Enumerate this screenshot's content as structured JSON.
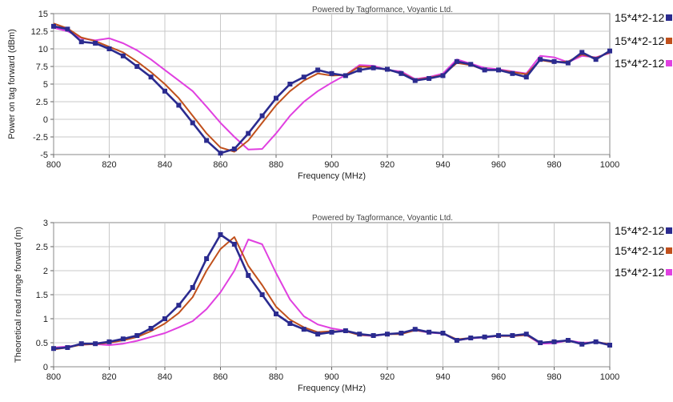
{
  "chart_data": [
    {
      "type": "line",
      "credit": "Powered by Tagformance, Voyantic Ltd.",
      "xlabel": "Frequency (MHz)",
      "ylabel": "Power on tag forward (dBm)",
      "xlim": [
        800,
        1000
      ],
      "ylim": [
        -5,
        15
      ],
      "x_ticks": [
        "800",
        "820",
        "840",
        "860",
        "880",
        "900",
        "920",
        "940",
        "960",
        "980",
        "1000"
      ],
      "y_ticks": [
        "-5",
        "-2.5",
        "0",
        "2.5",
        "5",
        "7.5",
        "10",
        "12.5",
        "15"
      ],
      "grid": true,
      "legend_position": "right",
      "legend": [
        "15*4*2-12",
        "15*4*2-12",
        "15*4*2-12"
      ],
      "series": [
        {
          "name": "15*4*2-12",
          "color": "#2b2b8f",
          "markers": true,
          "points": [
            [
              800,
              13.2
            ],
            [
              805,
              12.8
            ],
            [
              810,
              11.0
            ],
            [
              815,
              10.8
            ],
            [
              820,
              10.0
            ],
            [
              825,
              9.0
            ],
            [
              830,
              7.5
            ],
            [
              835,
              6.0
            ],
            [
              840,
              4.0
            ],
            [
              845,
              2.0
            ],
            [
              850,
              -0.5
            ],
            [
              855,
              -3.0
            ],
            [
              860,
              -4.8
            ],
            [
              865,
              -4.2
            ],
            [
              870,
              -2.0
            ],
            [
              875,
              0.5
            ],
            [
              880,
              3.0
            ],
            [
              885,
              5.0
            ],
            [
              890,
              6.0
            ],
            [
              895,
              7.0
            ],
            [
              900,
              6.5
            ],
            [
              905,
              6.2
            ],
            [
              910,
              7.0
            ],
            [
              915,
              7.3
            ],
            [
              920,
              7.1
            ],
            [
              925,
              6.5
            ],
            [
              930,
              5.5
            ],
            [
              935,
              5.8
            ],
            [
              940,
              6.2
            ],
            [
              945,
              8.2
            ],
            [
              950,
              7.8
            ],
            [
              955,
              7.0
            ],
            [
              960,
              7.0
            ],
            [
              965,
              6.5
            ],
            [
              970,
              6.0
            ],
            [
              975,
              8.5
            ],
            [
              980,
              8.2
            ],
            [
              985,
              8.0
            ],
            [
              990,
              9.5
            ],
            [
              995,
              8.5
            ],
            [
              1000,
              9.7
            ]
          ]
        },
        {
          "name": "15*4*2-12",
          "color": "#c0501c",
          "markers": false,
          "points": [
            [
              800,
              13.6
            ],
            [
              805,
              12.9
            ],
            [
              810,
              11.6
            ],
            [
              815,
              11.1
            ],
            [
              820,
              10.3
            ],
            [
              825,
              9.5
            ],
            [
              830,
              8.2
            ],
            [
              835,
              6.7
            ],
            [
              840,
              5.0
            ],
            [
              845,
              3.0
            ],
            [
              850,
              0.5
            ],
            [
              855,
              -2.0
            ],
            [
              860,
              -4.0
            ],
            [
              865,
              -4.6
            ],
            [
              870,
              -3.0
            ],
            [
              875,
              -0.5
            ],
            [
              880,
              2.0
            ],
            [
              885,
              4.0
            ],
            [
              890,
              5.5
            ],
            [
              895,
              6.5
            ],
            [
              900,
              6.2
            ],
            [
              905,
              6.3
            ],
            [
              910,
              7.5
            ],
            [
              915,
              7.4
            ],
            [
              920,
              7.0
            ],
            [
              925,
              6.6
            ],
            [
              930,
              5.6
            ],
            [
              935,
              5.9
            ],
            [
              940,
              6.3
            ],
            [
              945,
              8.0
            ],
            [
              950,
              7.7
            ],
            [
              955,
              7.0
            ],
            [
              960,
              7.0
            ],
            [
              965,
              6.7
            ],
            [
              970,
              6.4
            ],
            [
              975,
              8.4
            ],
            [
              980,
              8.1
            ],
            [
              985,
              8.2
            ],
            [
              990,
              9.2
            ],
            [
              995,
              8.7
            ],
            [
              1000,
              9.5
            ]
          ]
        },
        {
          "name": "15*4*2-12",
          "color": "#e040e0",
          "markers": false,
          "points": [
            [
              800,
              13.0
            ],
            [
              805,
              12.5
            ],
            [
              810,
              11.5
            ],
            [
              815,
              11.2
            ],
            [
              820,
              11.5
            ],
            [
              825,
              10.8
            ],
            [
              830,
              9.8
            ],
            [
              835,
              8.5
            ],
            [
              840,
              7.0
            ],
            [
              845,
              5.5
            ],
            [
              850,
              4.0
            ],
            [
              855,
              1.8
            ],
            [
              860,
              -0.5
            ],
            [
              865,
              -2.5
            ],
            [
              870,
              -4.3
            ],
            [
              875,
              -4.2
            ],
            [
              880,
              -2.0
            ],
            [
              885,
              0.5
            ],
            [
              890,
              2.5
            ],
            [
              895,
              4.0
            ],
            [
              900,
              5.2
            ],
            [
              905,
              6.3
            ],
            [
              910,
              7.7
            ],
            [
              915,
              7.6
            ],
            [
              920,
              7.0
            ],
            [
              925,
              6.8
            ],
            [
              930,
              5.7
            ],
            [
              935,
              6.0
            ],
            [
              940,
              6.5
            ],
            [
              945,
              8.5
            ],
            [
              950,
              7.9
            ],
            [
              955,
              7.3
            ],
            [
              960,
              7.1
            ],
            [
              965,
              6.8
            ],
            [
              970,
              6.5
            ],
            [
              975,
              9.0
            ],
            [
              980,
              8.8
            ],
            [
              985,
              8.1
            ],
            [
              990,
              9.0
            ],
            [
              995,
              8.8
            ],
            [
              1000,
              9.4
            ]
          ]
        }
      ]
    },
    {
      "type": "line",
      "credit": "Powered by Tagformance, Voyantic Ltd.",
      "xlabel": "Frequency (MHz)",
      "ylabel": "Theoretical read range forward (m)",
      "xlim": [
        800,
        1000
      ],
      "ylim": [
        0,
        3
      ],
      "x_ticks": [
        "800",
        "820",
        "840",
        "860",
        "880",
        "900",
        "920",
        "940",
        "960",
        "980",
        "1000"
      ],
      "y_ticks": [
        "0",
        "0.5",
        "1",
        "1.5",
        "2",
        "2.5",
        "3"
      ],
      "grid": true,
      "legend_position": "right",
      "legend": [
        "15*4*2-12",
        "15*4*2-12",
        "15*4*2-12"
      ],
      "series": [
        {
          "name": "15*4*2-12",
          "color": "#2b2b8f",
          "markers": true,
          "points": [
            [
              800,
              0.38
            ],
            [
              805,
              0.4
            ],
            [
              810,
              0.48
            ],
            [
              815,
              0.48
            ],
            [
              820,
              0.52
            ],
            [
              825,
              0.58
            ],
            [
              830,
              0.65
            ],
            [
              835,
              0.8
            ],
            [
              840,
              1.0
            ],
            [
              845,
              1.28
            ],
            [
              850,
              1.65
            ],
            [
              855,
              2.25
            ],
            [
              860,
              2.75
            ],
            [
              865,
              2.55
            ],
            [
              870,
              1.9
            ],
            [
              875,
              1.5
            ],
            [
              880,
              1.1
            ],
            [
              885,
              0.9
            ],
            [
              890,
              0.78
            ],
            [
              895,
              0.68
            ],
            [
              900,
              0.72
            ],
            [
              905,
              0.75
            ],
            [
              910,
              0.68
            ],
            [
              915,
              0.65
            ],
            [
              920,
              0.68
            ],
            [
              925,
              0.7
            ],
            [
              930,
              0.78
            ],
            [
              935,
              0.72
            ],
            [
              940,
              0.7
            ],
            [
              945,
              0.55
            ],
            [
              950,
              0.6
            ],
            [
              955,
              0.62
            ],
            [
              960,
              0.65
            ],
            [
              965,
              0.65
            ],
            [
              970,
              0.68
            ],
            [
              975,
              0.5
            ],
            [
              980,
              0.52
            ],
            [
              985,
              0.55
            ],
            [
              990,
              0.47
            ],
            [
              995,
              0.52
            ],
            [
              1000,
              0.45
            ]
          ]
        },
        {
          "name": "15*4*2-12",
          "color": "#c0501c",
          "markers": false,
          "points": [
            [
              800,
              0.36
            ],
            [
              805,
              0.4
            ],
            [
              810,
              0.46
            ],
            [
              815,
              0.47
            ],
            [
              820,
              0.5
            ],
            [
              825,
              0.55
            ],
            [
              830,
              0.62
            ],
            [
              835,
              0.74
            ],
            [
              840,
              0.9
            ],
            [
              845,
              1.12
            ],
            [
              850,
              1.45
            ],
            [
              855,
              2.0
            ],
            [
              860,
              2.45
            ],
            [
              865,
              2.7
            ],
            [
              870,
              2.1
            ],
            [
              875,
              1.7
            ],
            [
              880,
              1.25
            ],
            [
              885,
              0.98
            ],
            [
              890,
              0.82
            ],
            [
              895,
              0.72
            ],
            [
              900,
              0.74
            ],
            [
              905,
              0.74
            ],
            [
              910,
              0.66
            ],
            [
              915,
              0.65
            ],
            [
              920,
              0.68
            ],
            [
              925,
              0.68
            ],
            [
              930,
              0.76
            ],
            [
              935,
              0.72
            ],
            [
              940,
              0.7
            ],
            [
              945,
              0.57
            ],
            [
              950,
              0.6
            ],
            [
              955,
              0.62
            ],
            [
              960,
              0.64
            ],
            [
              965,
              0.64
            ],
            [
              970,
              0.66
            ],
            [
              975,
              0.5
            ],
            [
              980,
              0.53
            ],
            [
              985,
              0.54
            ],
            [
              990,
              0.48
            ],
            [
              995,
              0.52
            ],
            [
              1000,
              0.47
            ]
          ]
        },
        {
          "name": "15*4*2-12",
          "color": "#e040e0",
          "markers": false,
          "points": [
            [
              800,
              0.4
            ],
            [
              805,
              0.42
            ],
            [
              810,
              0.46
            ],
            [
              815,
              0.47
            ],
            [
              820,
              0.45
            ],
            [
              825,
              0.48
            ],
            [
              830,
              0.54
            ],
            [
              835,
              0.62
            ],
            [
              840,
              0.7
            ],
            [
              845,
              0.82
            ],
            [
              850,
              0.95
            ],
            [
              855,
              1.2
            ],
            [
              860,
              1.55
            ],
            [
              865,
              2.0
            ],
            [
              870,
              2.65
            ],
            [
              875,
              2.55
            ],
            [
              880,
              1.95
            ],
            [
              885,
              1.4
            ],
            [
              890,
              1.05
            ],
            [
              895,
              0.88
            ],
            [
              900,
              0.8
            ],
            [
              905,
              0.75
            ],
            [
              910,
              0.66
            ],
            [
              915,
              0.64
            ],
            [
              920,
              0.68
            ],
            [
              925,
              0.69
            ],
            [
              930,
              0.76
            ],
            [
              935,
              0.71
            ],
            [
              940,
              0.69
            ],
            [
              945,
              0.55
            ],
            [
              950,
              0.59
            ],
            [
              955,
              0.61
            ],
            [
              960,
              0.64
            ],
            [
              965,
              0.64
            ],
            [
              970,
              0.66
            ],
            [
              975,
              0.48
            ],
            [
              980,
              0.49
            ],
            [
              985,
              0.55
            ],
            [
              990,
              0.5
            ],
            [
              995,
              0.51
            ],
            [
              1000,
              0.47
            ]
          ]
        }
      ]
    }
  ]
}
